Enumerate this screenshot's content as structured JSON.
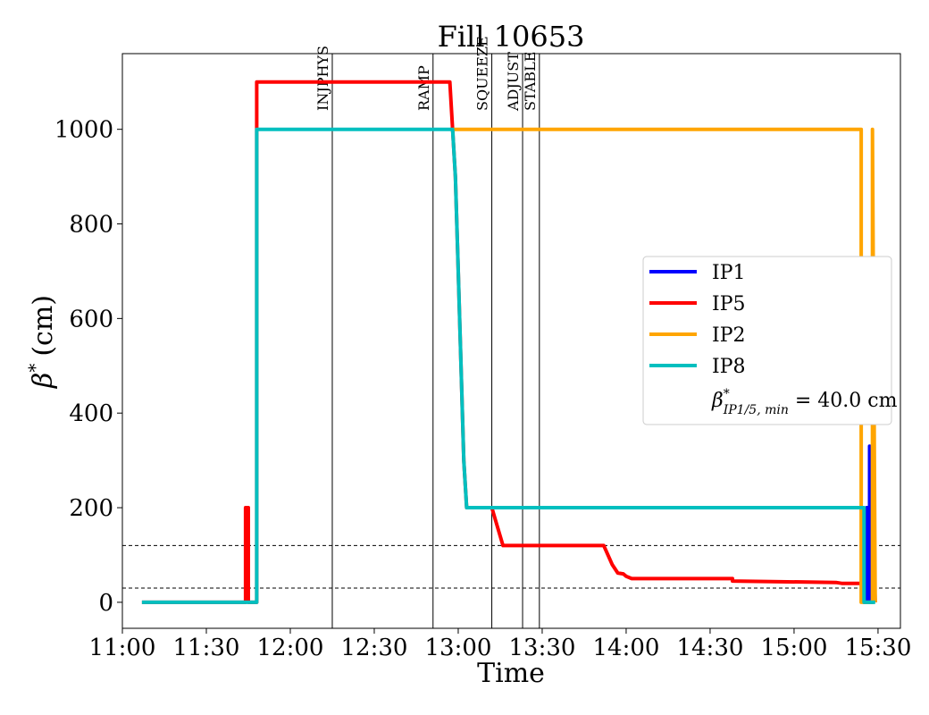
{
  "chart_data": {
    "type": "line",
    "title": "Fill 10653",
    "xlabel": "Time",
    "ylabel_symbol": "β",
    "ylabel_sup": "*",
    "ylabel_unit": "(cm)",
    "xlim": [
      "11:00",
      "15:38"
    ],
    "ylim": [
      -55,
      1160
    ],
    "x_ticks": [
      "11:00",
      "11:30",
      "12:00",
      "12:30",
      "13:00",
      "13:30",
      "14:00",
      "14:30",
      "15:00",
      "15:30"
    ],
    "y_ticks": [
      0,
      200,
      400,
      600,
      800,
      1000
    ],
    "grid": false,
    "legend_placement": "center-right",
    "phases": [
      {
        "label": "INJPHYS",
        "time": "12:15"
      },
      {
        "label": "RAMP",
        "time": "12:51"
      },
      {
        "label": "SQUEEZE",
        "time": "13:12"
      },
      {
        "label": "ADJUST",
        "time": "13:23"
      },
      {
        "label": "STABLE",
        "time": "13:29"
      }
    ],
    "hlines": [
      120,
      30
    ],
    "min_label": {
      "main": "β",
      "sup": "*",
      "sub": "IP1/5, min",
      "rest": " = 40.0 cm"
    },
    "series": [
      {
        "name": "IP5",
        "color": "#ff0000",
        "points": [
          [
            "11:07",
            0
          ],
          [
            "11:44",
            0
          ],
          [
            "11:44",
            200
          ],
          [
            "11:45",
            200
          ],
          [
            "11:45",
            0
          ],
          [
            "11:48",
            0
          ],
          [
            "11:48",
            1100
          ],
          [
            "12:57",
            1100
          ],
          [
            "12:58",
            1000
          ],
          [
            "12:59",
            900
          ],
          [
            "13:00",
            700
          ],
          [
            "13:01",
            500
          ],
          [
            "13:02",
            300
          ],
          [
            "13:03",
            200
          ],
          [
            "13:12",
            200
          ],
          [
            "13:14",
            160
          ],
          [
            "13:16",
            120
          ],
          [
            "13:52",
            120
          ],
          [
            "13:55",
            80
          ],
          [
            "13:57",
            62
          ],
          [
            "13:59",
            60
          ],
          [
            "14:00",
            55
          ],
          [
            "14:02",
            50
          ],
          [
            "14:38",
            50
          ],
          [
            "14:38",
            45
          ],
          [
            "15:15",
            42
          ],
          [
            "15:17",
            40
          ],
          [
            "15:25",
            40
          ],
          [
            "15:25",
            0
          ],
          [
            "15:28",
            0
          ],
          [
            "15:28",
            200
          ],
          [
            "15:29",
            0
          ]
        ]
      },
      {
        "name": "IP1",
        "color": "#0000ff",
        "points": [
          [
            "15:26",
            0
          ],
          [
            "15:26",
            200
          ],
          [
            "15:27",
            200
          ],
          [
            "15:27",
            330
          ],
          [
            "15:27",
            0
          ],
          [
            "15:28",
            0
          ]
        ]
      },
      {
        "name": "IP2",
        "color": "#ffa500",
        "points": [
          [
            "12:58",
            1000
          ],
          [
            "15:24",
            1000
          ],
          [
            "15:24",
            0
          ],
          [
            "15:28",
            0
          ],
          [
            "15:28",
            1000
          ],
          [
            "15:29",
            0
          ]
        ]
      },
      {
        "name": "IP8",
        "color": "#00bfbf",
        "points": [
          [
            "11:07",
            0
          ],
          [
            "11:48",
            0
          ],
          [
            "11:48",
            1000
          ],
          [
            "12:58",
            1000
          ],
          [
            "12:59",
            900
          ],
          [
            "13:00",
            700
          ],
          [
            "13:01",
            500
          ],
          [
            "13:02",
            300
          ],
          [
            "13:03",
            200
          ],
          [
            "15:25",
            200
          ],
          [
            "15:25",
            0
          ],
          [
            "15:29",
            0
          ]
        ]
      }
    ],
    "legend_order": [
      "IP1",
      "IP5",
      "IP2",
      "IP8"
    ]
  }
}
